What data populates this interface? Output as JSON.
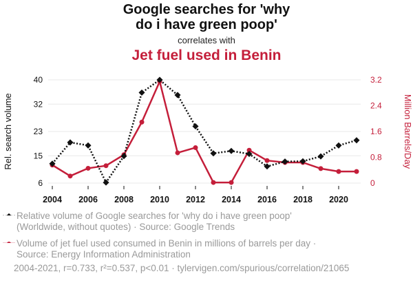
{
  "title_line1": "Google searches for 'why",
  "title_line2": "do i have green poop'",
  "subtitle": "correlates with",
  "title2": "Jet fuel used in Benin",
  "colors": {
    "series1": "#111111",
    "series2": "#c41e3a"
  },
  "legend": {
    "s1_line1": "Relative volume of Google searches for 'why do i have green poop'",
    "s1_line2": "(Worldwide, without quotes) · Source: Google Trends",
    "s2_line1": "Volume of jet fuel used consumed in Benin in millions of barrels per day ·",
    "s2_line2": "Source: Energy Information Administration"
  },
  "footer": "2004-2021, r=0.733, r²=0.537, p<0.01 · tylervigen.com/spurious/correlation/21065",
  "chart_data": {
    "type": "line",
    "x": [
      2004,
      2005,
      2006,
      2007,
      2008,
      2009,
      2010,
      2011,
      2012,
      2013,
      2014,
      2015,
      2016,
      2017,
      2018,
      2019,
      2020,
      2021
    ],
    "xticks": [
      2004,
      2006,
      2008,
      2010,
      2012,
      2014,
      2016,
      2018,
      2020
    ],
    "xtick_labels": [
      "2004",
      "2006",
      "2008",
      "2010",
      "2012",
      "2014",
      "2016",
      "2018",
      "2020"
    ],
    "ylabel_left": "Rel. search volume",
    "ylabel_right": "Million Barrels/Day",
    "yleft_lim": [
      6,
      40
    ],
    "yleft_ticks": [
      6,
      15,
      23,
      32,
      40
    ],
    "yleft_tick_labels": [
      "6",
      "15",
      "23",
      "32",
      "40"
    ],
    "yright_lim": [
      0,
      3.2
    ],
    "yright_ticks": [
      0,
      0.8,
      1.6,
      2.4,
      3.2
    ],
    "yright_tick_labels": [
      "0",
      "0.8",
      "1.6",
      "2.4",
      "3.2"
    ],
    "series": [
      {
        "name": "Google searches for 'why do i have green poop'",
        "axis": "left",
        "values": [
          12.4,
          19.4,
          18.4,
          6.2,
          14.9,
          35.8,
          40.0,
          35.0,
          24.7,
          15.8,
          16.6,
          15.6,
          11.5,
          13.1,
          13.2,
          14.8,
          18.4,
          20.1
        ]
      },
      {
        "name": "Jet fuel used in Benin",
        "axis": "right",
        "values": [
          0.56,
          0.22,
          0.46,
          0.54,
          0.88,
          1.89,
          3.15,
          0.94,
          1.1,
          0.02,
          0.02,
          1.02,
          0.7,
          0.64,
          0.64,
          0.45,
          0.36,
          0.36
        ]
      }
    ]
  }
}
